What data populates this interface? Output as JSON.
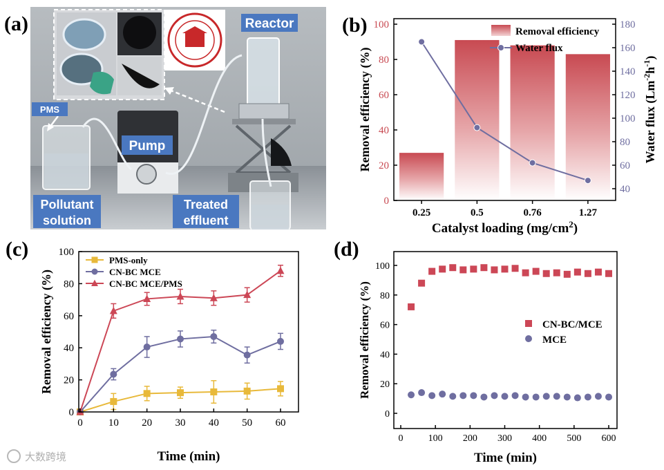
{
  "panel_a": {
    "panel_label": "(a)",
    "labels": {
      "reactor": "Reactor",
      "pms": "PMS",
      "pump": "Pump",
      "pollutant_line1": "Pollutant",
      "pollutant_line2": "solution",
      "treated_line1": "Treated",
      "treated_line2": "effluent"
    },
    "colors": {
      "label_bg": "#4a78c0",
      "label_text": "#ffffff",
      "seal": "#c8282a"
    }
  },
  "watermark": "大数跨境",
  "chart_data": [
    {
      "panel": "(b)",
      "type": "bar",
      "categories": [
        "0.25",
        "0.5",
        "0.76",
        "1.27"
      ],
      "series": [
        {
          "name": "Removal efficiency",
          "axis": "left",
          "values": [
            27,
            91,
            88,
            83
          ],
          "color": "#c84a52"
        },
        {
          "name": "Water flux",
          "axis": "right",
          "type": "line",
          "values": [
            165,
            92,
            62,
            47
          ],
          "color": "#6f6ea0"
        }
      ],
      "xlabel": "Catalyst loading (mg/cm",
      "xlabel_sup": "2",
      "xlabel_end": ")",
      "ylabel": "Removal efficiency (%)",
      "ylim": [
        0,
        100
      ],
      "yticks": [
        0,
        20,
        40,
        60,
        80,
        100
      ],
      "y2label": "Water flux (Lm",
      "y2label_sup1": "-2",
      "y2label_mid": "h",
      "y2label_sup2": "-1",
      "y2label_end": ")",
      "y2lim": [
        30,
        180
      ],
      "y2ticks": [
        40,
        60,
        80,
        100,
        120,
        140,
        160,
        180
      ],
      "legend": "top-right"
    },
    {
      "panel": "(c)",
      "type": "line",
      "x": [
        0,
        10,
        20,
        30,
        40,
        50,
        60
      ],
      "series": [
        {
          "name": "PMS-only",
          "marker": "square",
          "color": "#e8b93a",
          "values": [
            0,
            6.5,
            11.5,
            12,
            12.5,
            13,
            14.5
          ],
          "errors": [
            0,
            5,
            4.5,
            3.5,
            7,
            5,
            4.5
          ]
        },
        {
          "name": "CN-BC MCE",
          "marker": "circle",
          "color": "#6f6ea0",
          "values": [
            0,
            23.5,
            40.5,
            45.5,
            47,
            35.5,
            44
          ],
          "errors": [
            0,
            3.5,
            6.5,
            5,
            4,
            5,
            5
          ]
        },
        {
          "name": "CN-BC MCE/PMS",
          "marker": "triangle",
          "color": "#cc4756",
          "values": [
            0,
            63,
            70.5,
            72,
            71,
            73,
            88
          ],
          "errors": [
            0,
            4.5,
            4,
            4.5,
            4.5,
            4.5,
            3.5
          ]
        }
      ],
      "xlabel": "Time (min)",
      "ylabel": "Removal efficiency (%)",
      "xlim": [
        0,
        60
      ],
      "xticks": [
        0,
        10,
        20,
        30,
        40,
        50,
        60
      ],
      "ylim": [
        0,
        100
      ],
      "yticks": [
        0,
        20,
        40,
        60,
        80,
        100
      ],
      "legend": "top-left"
    },
    {
      "panel": "(d)",
      "type": "scatter",
      "x": [
        30,
        60,
        90,
        120,
        150,
        180,
        210,
        240,
        270,
        300,
        330,
        360,
        390,
        420,
        450,
        480,
        510,
        540,
        570,
        600
      ],
      "series": [
        {
          "name": "CN-BC/MCE",
          "marker": "square",
          "color": "#cc4756",
          "values": [
            72,
            88,
            96,
            97.5,
            98.5,
            97,
            97.5,
            98.5,
            97,
            97.5,
            98,
            95,
            96,
            94.5,
            95,
            94,
            95.5,
            94.5,
            95.5,
            94.5
          ]
        },
        {
          "name": "MCE",
          "marker": "circle",
          "color": "#6f6ea0",
          "values": [
            12.5,
            14,
            12,
            13,
            11.5,
            12,
            12,
            11,
            12,
            11.5,
            12,
            11,
            11,
            11.5,
            11.5,
            11,
            10.5,
            11,
            11.5,
            11
          ]
        }
      ],
      "xlabel": "Time (min)",
      "ylabel": "Removal efficiency (%)",
      "xlim": [
        0,
        600
      ],
      "xticks": [
        0,
        100,
        200,
        300,
        400,
        500,
        600
      ],
      "ylim": [
        0,
        100
      ],
      "yticks": [
        0,
        20,
        40,
        60,
        80,
        100
      ],
      "legend": "center-right"
    }
  ]
}
